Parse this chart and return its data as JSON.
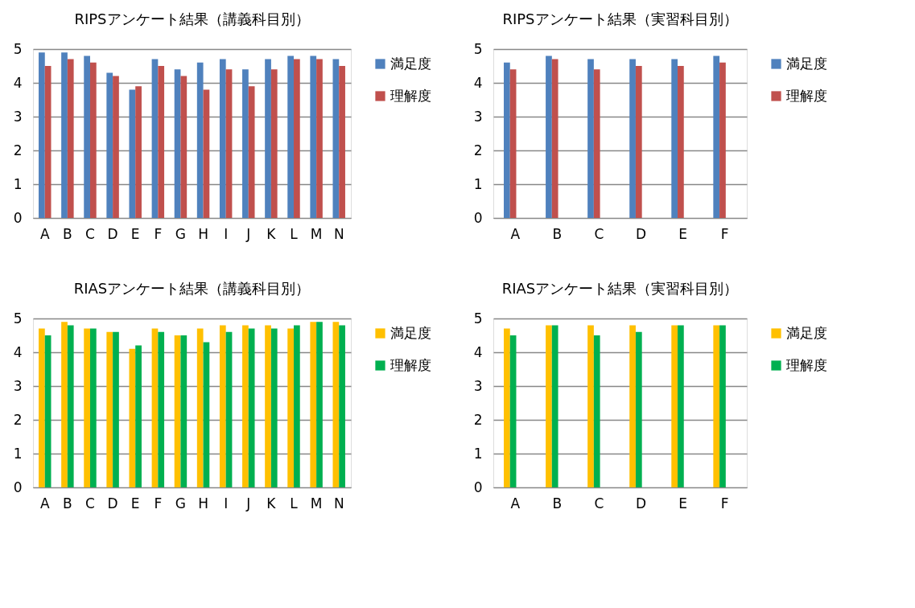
{
  "chart_data": [
    {
      "type": "bar",
      "title": "RIPSアンケート結果（講義科目別）",
      "categories": [
        "A",
        "B",
        "C",
        "D",
        "E",
        "F",
        "G",
        "H",
        "I",
        "J",
        "K",
        "L",
        "M",
        "N"
      ],
      "ylim": [
        0,
        5
      ],
      "yticks": [
        0,
        1,
        2,
        3,
        4,
        5
      ],
      "grid": "y",
      "legend": "right",
      "series": [
        {
          "name": "満足度",
          "color": "#4f81bd",
          "values": [
            4.9,
            4.9,
            4.8,
            4.3,
            3.8,
            4.7,
            4.4,
            4.6,
            4.7,
            4.4,
            4.7,
            4.8,
            4.8,
            4.7
          ]
        },
        {
          "name": "理解度",
          "color": "#c0504d",
          "values": [
            4.5,
            4.7,
            4.6,
            4.2,
            3.9,
            4.5,
            4.2,
            3.8,
            4.4,
            3.9,
            4.4,
            4.7,
            4.7,
            4.5
          ]
        }
      ]
    },
    {
      "type": "bar",
      "title": "RIPSアンケート結果（実習科目別）",
      "categories": [
        "A",
        "B",
        "C",
        "D",
        "E",
        "F"
      ],
      "ylim": [
        0,
        5
      ],
      "yticks": [
        0,
        1,
        2,
        3,
        4,
        5
      ],
      "grid": "y",
      "legend": "right",
      "series": [
        {
          "name": "満足度",
          "color": "#4f81bd",
          "values": [
            4.6,
            4.8,
            4.7,
            4.7,
            4.7,
            4.8
          ]
        },
        {
          "name": "理解度",
          "color": "#c0504d",
          "values": [
            4.4,
            4.7,
            4.4,
            4.5,
            4.5,
            4.6
          ]
        }
      ]
    },
    {
      "type": "bar",
      "title": "RIASアンケート結果（講義科目別）",
      "categories": [
        "A",
        "B",
        "C",
        "D",
        "E",
        "F",
        "G",
        "H",
        "I",
        "J",
        "K",
        "L",
        "M",
        "N"
      ],
      "ylim": [
        0,
        5
      ],
      "yticks": [
        0,
        1,
        2,
        3,
        4,
        5
      ],
      "grid": "y",
      "legend": "right",
      "series": [
        {
          "name": "満足度",
          "color": "#ffc000",
          "values": [
            4.7,
            4.9,
            4.7,
            4.6,
            4.1,
            4.7,
            4.5,
            4.7,
            4.8,
            4.8,
            4.8,
            4.7,
            4.9,
            4.9
          ]
        },
        {
          "name": "理解度",
          "color": "#00b050",
          "values": [
            4.5,
            4.8,
            4.7,
            4.6,
            4.2,
            4.6,
            4.5,
            4.3,
            4.6,
            4.7,
            4.7,
            4.8,
            4.9,
            4.8
          ]
        }
      ]
    },
    {
      "type": "bar",
      "title": "RIASアンケート結果（実習科目別）",
      "categories": [
        "A",
        "B",
        "C",
        "D",
        "E",
        "F"
      ],
      "ylim": [
        0,
        5
      ],
      "yticks": [
        0,
        1,
        2,
        3,
        4,
        5
      ],
      "grid": "y",
      "legend": "right",
      "series": [
        {
          "name": "満足度",
          "color": "#ffc000",
          "values": [
            4.7,
            4.8,
            4.8,
            4.8,
            4.8,
            4.8
          ]
        },
        {
          "name": "理解度",
          "color": "#00b050",
          "values": [
            4.5,
            4.8,
            4.5,
            4.6,
            4.8,
            4.8
          ]
        }
      ]
    }
  ]
}
